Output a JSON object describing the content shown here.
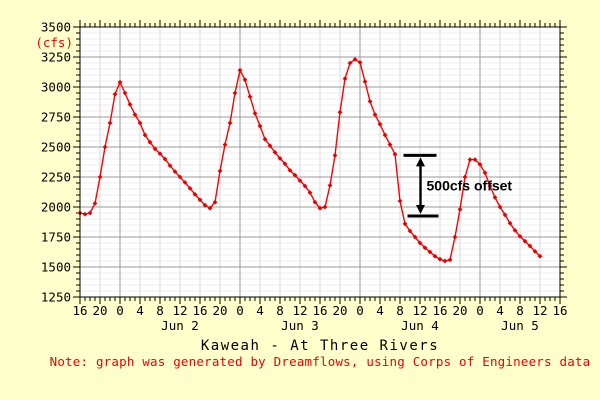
{
  "chart_data": {
    "type": "line",
    "title": "Kaweah - At Three Rivers",
    "note": "Note: graph was generated by Dreamflows, using Corps of Engineers data",
    "ylabel_unit": "(cfs)",
    "ylim": [
      1250,
      3500
    ],
    "y_major_step": 250,
    "y_minor_step": 50,
    "y_tick_labels": [
      "1250",
      "1500",
      "1750",
      "2000",
      "2250",
      "2500",
      "2750",
      "3000",
      "3250",
      "3500"
    ],
    "x_start": "Jun 1 16:00",
    "x_total_hours": 96,
    "x_major_step_hours": 4,
    "x_minor_step_hours": 1,
    "x_tick_labels": [
      "16",
      "20",
      "0",
      "4",
      "8",
      "12",
      "16",
      "20",
      "0",
      "4",
      "8",
      "12",
      "16",
      "20",
      "0",
      "4",
      "8",
      "12",
      "16",
      "20",
      "0",
      "4",
      "8",
      "12",
      "16"
    ],
    "day_labels": [
      {
        "label": "Jun 2",
        "hour_offset": 20
      },
      {
        "label": "Jun 3",
        "hour_offset": 44
      },
      {
        "label": "Jun 4",
        "hour_offset": 68
      },
      {
        "label": "Jun 5",
        "hour_offset": 88
      }
    ],
    "midnight_hour_offsets": [
      8,
      32,
      56,
      80
    ],
    "series": [
      {
        "name": "flow-cfs",
        "start_hour_offset": 0,
        "hours_between_points": 1,
        "values": [
          1950,
          1940,
          1950,
          2030,
          2250,
          2500,
          2700,
          2940,
          3040,
          2950,
          2855,
          2770,
          2700,
          2600,
          2540,
          2485,
          2445,
          2400,
          2345,
          2295,
          2250,
          2205,
          2155,
          2105,
          2060,
          2015,
          1990,
          2040,
          2300,
          2520,
          2700,
          2950,
          3140,
          3060,
          2920,
          2780,
          2675,
          2565,
          2510,
          2455,
          2405,
          2360,
          2305,
          2265,
          2220,
          2175,
          2120,
          2040,
          1990,
          2000,
          2180,
          2430,
          2790,
          3070,
          3200,
          3230,
          3205,
          3045,
          2880,
          2770,
          2690,
          2600,
          2520,
          2440,
          2050,
          1860,
          1800,
          1750,
          1700,
          1660,
          1625,
          1590,
          1565,
          1550,
          1560,
          1750,
          1980,
          2250,
          2395,
          2395,
          2355,
          2285,
          2175,
          2080,
          2000,
          1935,
          1865,
          1805,
          1755,
          1715,
          1675,
          1630,
          1590
        ]
      }
    ],
    "annotation": {
      "text": "500cfs offset",
      "x_hour_offset": 68.1,
      "y_top_cfs": 2430,
      "y_bottom_cfs": 1925
    },
    "colors": {
      "background": "#ffffcc",
      "plot_background": "#ffffff",
      "line": "#ff0000",
      "marker": "#e60000",
      "grid_major": "#999999",
      "grid_minor": "#ececec",
      "grid_vertical_minor": "#d9d9d9",
      "axis": "#000000",
      "red_text": "#ee0000"
    }
  }
}
